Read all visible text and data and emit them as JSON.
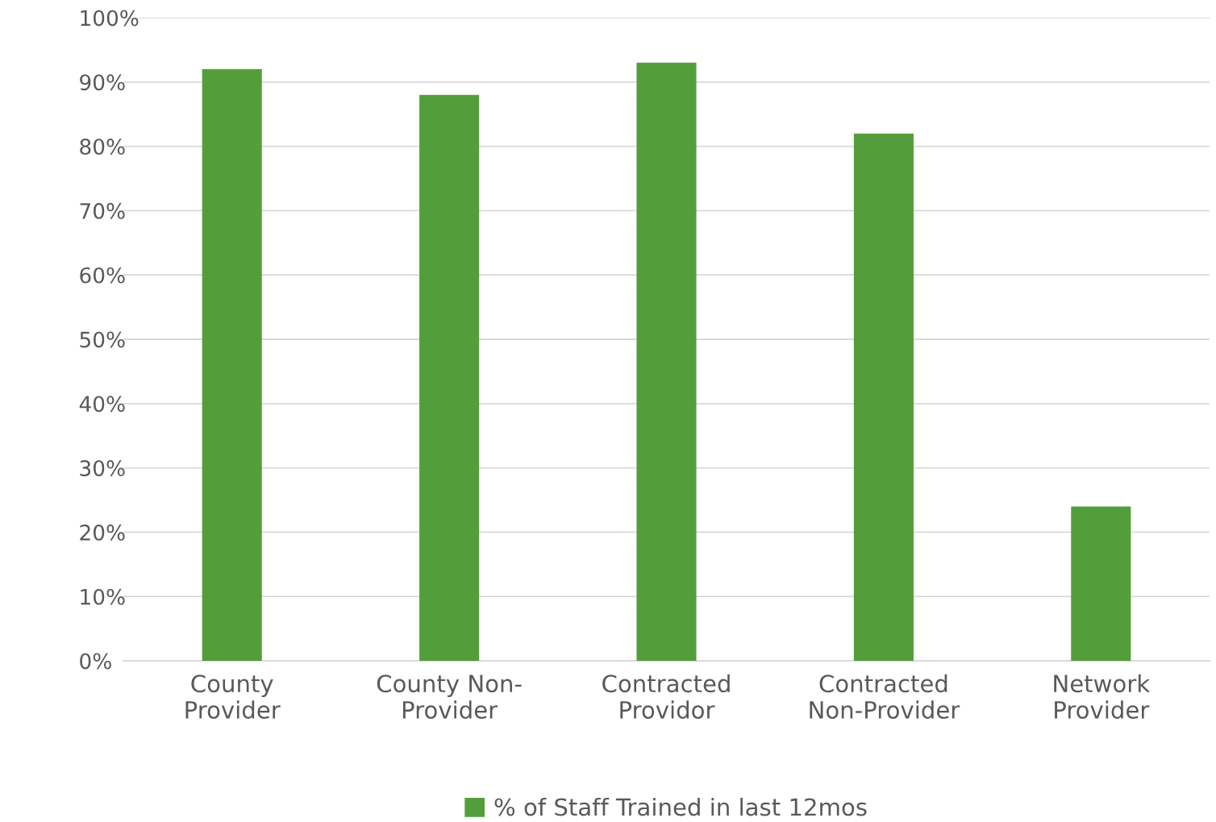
{
  "chart_data": {
    "type": "bar",
    "categories": [
      "County\nProvider",
      "County Non-\nProvider",
      "Contracted\nProvidor",
      "Contracted\nNon-Provider",
      "Network\nProvider"
    ],
    "series": [
      {
        "name": "% of Staff Trained in last 12mos",
        "color": "#539e3a",
        "values": [
          92,
          88,
          93,
          82,
          24
        ]
      }
    ],
    "ylim": [
      0,
      100
    ],
    "yticks": [
      {
        "value": 0,
        "label": "0%"
      },
      {
        "value": 10,
        "label": "10%"
      },
      {
        "value": 20,
        "label": "20%"
      },
      {
        "value": 30,
        "label": "30%"
      },
      {
        "value": 40,
        "label": "40%"
      },
      {
        "value": 50,
        "label": "50%"
      },
      {
        "value": 60,
        "label": "60%"
      },
      {
        "value": 70,
        "label": "70%"
      },
      {
        "value": 80,
        "label": "80%"
      },
      {
        "value": 90,
        "label": "90%"
      },
      {
        "value": 100,
        "label": "100%"
      }
    ],
    "grid": "y",
    "legend": "bottom"
  }
}
